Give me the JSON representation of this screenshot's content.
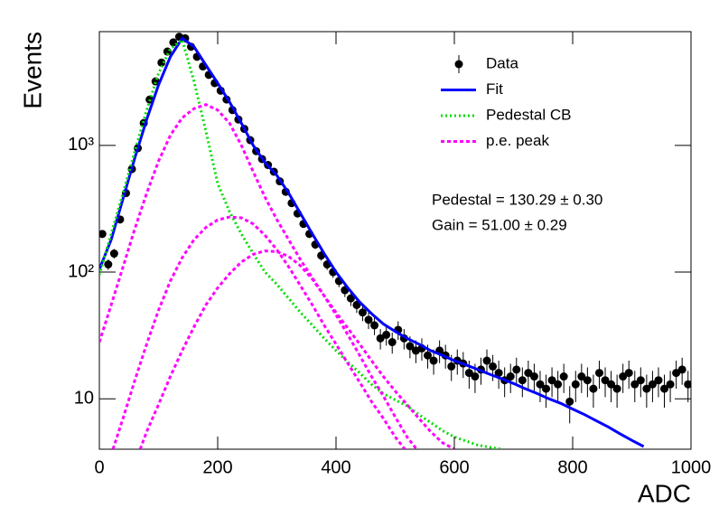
{
  "chart_data": {
    "type": "scatter",
    "x_label": "ADC",
    "y_label": "Events",
    "log_y": true,
    "xlim": [
      0,
      1000
    ],
    "ylim": [
      4,
      7900
    ],
    "xticks": [
      0,
      200,
      400,
      600,
      800,
      1000
    ],
    "yticks": [
      {
        "value": 10,
        "label": "10"
      },
      {
        "value": 100,
        "label": "10²"
      },
      {
        "value": 1000,
        "label": "10³"
      }
    ],
    "annotations": [
      "Pedestal = 130.29 ± 0.30",
      "Gain = 51.00 ± 0.29"
    ],
    "series": [
      {
        "name": "Data",
        "kind": "points",
        "color": "#000000",
        "x": [
          5,
          15,
          25,
          35,
          45,
          55,
          65,
          75,
          85,
          95,
          105,
          115,
          125,
          135,
          145,
          155,
          165,
          175,
          185,
          195,
          205,
          215,
          225,
          235,
          245,
          255,
          265,
          275,
          285,
          295,
          305,
          315,
          325,
          335,
          345,
          355,
          365,
          375,
          385,
          395,
          405,
          415,
          425,
          435,
          445,
          455,
          465,
          475,
          485,
          495,
          505,
          515,
          525,
          535,
          545,
          555,
          565,
          575,
          585,
          595,
          605,
          615,
          625,
          635,
          645,
          655,
          665,
          675,
          685,
          695,
          705,
          715,
          725,
          735,
          745,
          755,
          765,
          775,
          785,
          795,
          805,
          815,
          825,
          835,
          845,
          855,
          865,
          875,
          885,
          895,
          905,
          915,
          925,
          935,
          945,
          955,
          965,
          975,
          985,
          995
        ],
        "values": [
          200,
          115,
          140,
          260,
          420,
          650,
          950,
          1500,
          2300,
          3200,
          4500,
          5500,
          6500,
          7200,
          7000,
          6000,
          5000,
          4200,
          3600,
          3100,
          2700,
          2300,
          1900,
          1600,
          1350,
          1100,
          900,
          780,
          700,
          620,
          520,
          430,
          350,
          290,
          240,
          200,
          165,
          135,
          115,
          100,
          85,
          72,
          62,
          55,
          48,
          42,
          38,
          30,
          32,
          28,
          35,
          30,
          26,
          24,
          25,
          22,
          20,
          24,
          22,
          18,
          20,
          19,
          16,
          15,
          17,
          20,
          18,
          16,
          14,
          15,
          17,
          14,
          16,
          15,
          13,
          12,
          14,
          13,
          15,
          9.5,
          13,
          15,
          14,
          12,
          16,
          14,
          13,
          12,
          15,
          16,
          13,
          14,
          12,
          13,
          14,
          12,
          13,
          16,
          17,
          13
        ],
        "errors": [
          14,
          11,
          12,
          16,
          20,
          25,
          31,
          39,
          48,
          57,
          67,
          74,
          81,
          85,
          84,
          77,
          71,
          65,
          60,
          56,
          52,
          48,
          44,
          40,
          37,
          33,
          30,
          28,
          26,
          25,
          23,
          21,
          19,
          17,
          15,
          14,
          13,
          12,
          11,
          10,
          9,
          8.5,
          8,
          7.4,
          7,
          6.5,
          6.2,
          5.5,
          5.7,
          5.3,
          5.9,
          5.5,
          5.1,
          4.9,
          5,
          4.7,
          4.5,
          4.9,
          4.7,
          4.2,
          4.5,
          4.4,
          4,
          3.9,
          4.1,
          4.5,
          4.2,
          4,
          3.7,
          3.9,
          4.1,
          3.7,
          4,
          3.9,
          3.6,
          3.5,
          3.7,
          3.6,
          3.9,
          3.1,
          3.6,
          3.9,
          3.7,
          3.5,
          4,
          3.7,
          3.6,
          3.5,
          3.9,
          4,
          3.6,
          3.7,
          3.5,
          3.6,
          3.7,
          3.5,
          3.6,
          4,
          4.1,
          3.6
        ]
      },
      {
        "name": "Fit",
        "kind": "line",
        "color": "#0000ff",
        "dash": "none",
        "width": 3,
        "x": [
          0,
          20,
          40,
          60,
          80,
          100,
          120,
          140,
          160,
          180,
          200,
          220,
          240,
          260,
          280,
          300,
          320,
          340,
          360,
          380,
          400,
          420,
          440,
          460,
          480,
          500,
          520,
          540,
          560,
          580,
          600,
          620,
          640,
          660,
          680,
          700,
          720,
          740,
          760,
          780,
          800,
          820,
          840,
          860,
          880,
          900,
          920
        ],
        "values": [
          105,
          180,
          380,
          800,
          1600,
          3000,
          5000,
          7000,
          6000,
          4300,
          3100,
          2200,
          1500,
          1000,
          730,
          580,
          420,
          290,
          200,
          140,
          100,
          75,
          58,
          47,
          39,
          34,
          30,
          27,
          24,
          22,
          20,
          18.5,
          17,
          15.6,
          14.4,
          13.2,
          12,
          11,
          10,
          9.2,
          8.3,
          7.5,
          6.7,
          6,
          5.3,
          4.7,
          4.2
        ]
      },
      {
        "name": "Pedestal CB",
        "kind": "line",
        "color": "#00dd00",
        "dash": "2 3",
        "width": 3,
        "x": [
          0,
          20,
          40,
          60,
          80,
          100,
          120,
          140,
          160,
          180,
          200,
          220,
          240,
          260,
          280,
          300,
          320,
          340,
          360,
          380,
          400,
          420,
          440,
          460,
          480,
          500,
          520,
          540,
          560,
          580,
          600,
          640,
          680
        ],
        "values": [
          95,
          200,
          420,
          900,
          1900,
          3700,
          5800,
          6800,
          3200,
          1300,
          500,
          300,
          200,
          140,
          100,
          80,
          62,
          48,
          38,
          30,
          24,
          19.5,
          16,
          13,
          11,
          9.8,
          8.8,
          7.5,
          6.5,
          5.6,
          5,
          4.3,
          4
        ]
      },
      {
        "name": "p.e. peak",
        "kind": "line",
        "color": "#ff00ff",
        "dash": "4 3",
        "width": 3,
        "x": [
          0,
          20,
          40,
          60,
          80,
          100,
          120,
          140,
          160,
          180,
          200,
          220,
          240,
          260,
          280,
          300,
          320,
          340,
          360,
          380,
          400,
          420,
          440,
          460,
          480,
          500,
          520,
          540,
          560,
          580,
          600
        ],
        "values": [
          28,
          55,
          110,
          220,
          420,
          750,
          1200,
          1650,
          1950,
          2100,
          1900,
          1500,
          1000,
          620,
          390,
          260,
          180,
          125,
          90,
          65,
          48,
          36,
          27,
          20,
          15,
          11.5,
          9,
          7,
          5.5,
          4.5,
          4
        ]
      },
      {
        "kind": "line",
        "color": "#ff00ff",
        "dash": "4 3",
        "width": 3,
        "x": [
          23,
          40,
          60,
          80,
          100,
          120,
          140,
          160,
          180,
          200,
          220,
          240,
          260,
          280,
          300,
          320,
          340,
          360,
          380,
          400,
          420,
          440,
          460,
          480,
          500,
          520
        ],
        "values": [
          4,
          7,
          14,
          27,
          50,
          85,
          130,
          180,
          225,
          258,
          272,
          268,
          240,
          195,
          150,
          110,
          78,
          55,
          38,
          27,
          19,
          13.5,
          9.5,
          7,
          5,
          3.8
        ]
      },
      {
        "kind": "line",
        "color": "#ff00ff",
        "dash": "4 3",
        "width": 3,
        "x": [
          69,
          80,
          100,
          120,
          140,
          160,
          180,
          200,
          220,
          240,
          260,
          280,
          300,
          320,
          340,
          360,
          380,
          400,
          420,
          440,
          460,
          480,
          500,
          520,
          540
        ],
        "values": [
          4,
          5.5,
          9,
          15,
          24,
          37,
          55,
          75,
          97,
          120,
          138,
          147,
          145,
          133,
          112,
          88,
          65,
          46,
          32,
          22,
          15,
          10.5,
          7.2,
          5,
          3.8
        ]
      }
    ]
  }
}
